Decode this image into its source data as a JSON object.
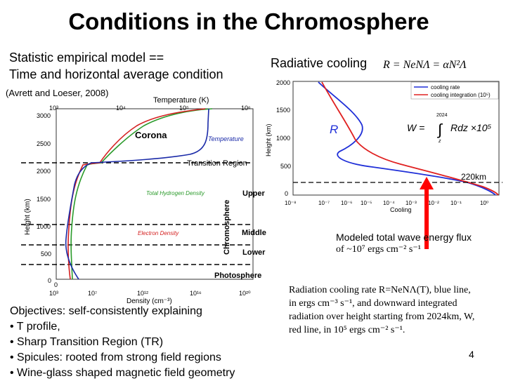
{
  "slide": {
    "title": "Conditions in the Chromosphere",
    "subtitle_line1": "Statistic empirical model ==",
    "subtitle_line2": "Time and horizontal average condition",
    "reference": "(Avrett and Loeser, 2008)",
    "radiative_label": "Radiative cooling",
    "formula": "R = NeNΛ = αN²Λ",
    "modeled_line1": "Modeled total wave energy flux",
    "modeled_line2": "of ~10⁷ ergs cm⁻² s⁻¹",
    "caption_lines": [
      "Radiation cooling rate R=NeNΛ(T), blue line,",
      "in ergs cm⁻³ s⁻¹, and downward integrated",
      "radiation over height starting from 2024km, W,",
      "red line, in 10⁵ ergs cm⁻² s⁻¹."
    ],
    "objectives": [
      "Objectives: self-consistently explaining",
      "• T profile,",
      "• Sharp Transition Region (TR)",
      "• Spicules: rooted from strong field regions",
      "• Wine-glass shaped magnetic field geometry"
    ],
    "page_number": "4"
  },
  "left_figure": {
    "top_axis_title": "Temperature (K)",
    "top_ticks": [
      "10³",
      "10⁴",
      "10⁵",
      "10⁶"
    ],
    "bottom_axis_title": "Density (cm⁻³)",
    "bottom_ticks": [
      "0",
      "10³",
      "10⁷",
      "10¹²",
      "10¹⁶",
      "10²⁰"
    ],
    "y_axis_title": "Height (km)",
    "y_ticks": [
      "3000",
      "2500",
      "2000",
      "1500",
      "1000",
      "500",
      "0"
    ],
    "labels": {
      "corona": "Corona",
      "temperature": "Temperature",
      "transition": "Transition Region",
      "hydrogen": "Total Hydrogen Density",
      "electron": "Electron Density",
      "chromosphere": "Chromosphere",
      "upper": "Upper",
      "middle": "Middle",
      "lower": "Lower",
      "photosphere": "Photosphere"
    },
    "colors": {
      "temperature": "#1a2aa8",
      "hydrogen": "#2a9a2a",
      "electron": "#d42020"
    }
  },
  "right_figure": {
    "y_axis_title": "Height (km)",
    "y_ticks": [
      "2000",
      "1500",
      "1000",
      "500",
      "0"
    ],
    "x_ticks": [
      "10⁻⁸",
      "10⁻⁷",
      "10⁻⁶",
      "10⁻⁵",
      "10⁻⁴",
      "10⁻³",
      "10⁻²",
      "10⁻¹",
      "10⁰"
    ],
    "x_axis_title": "Cooling",
    "legend": [
      "cooling rate",
      "cooling integration (10⁵)"
    ],
    "r_label": "R",
    "w_formula_left": "W =",
    "w_formula_upper": "2024",
    "w_formula_lower": "z",
    "w_formula_right": "Rdz ×10⁵",
    "marker_label": "220km",
    "colors": {
      "cooling_rate": "#1f2fd8",
      "cooling_integration": "#e02020",
      "arrow": "#ff0000"
    }
  }
}
